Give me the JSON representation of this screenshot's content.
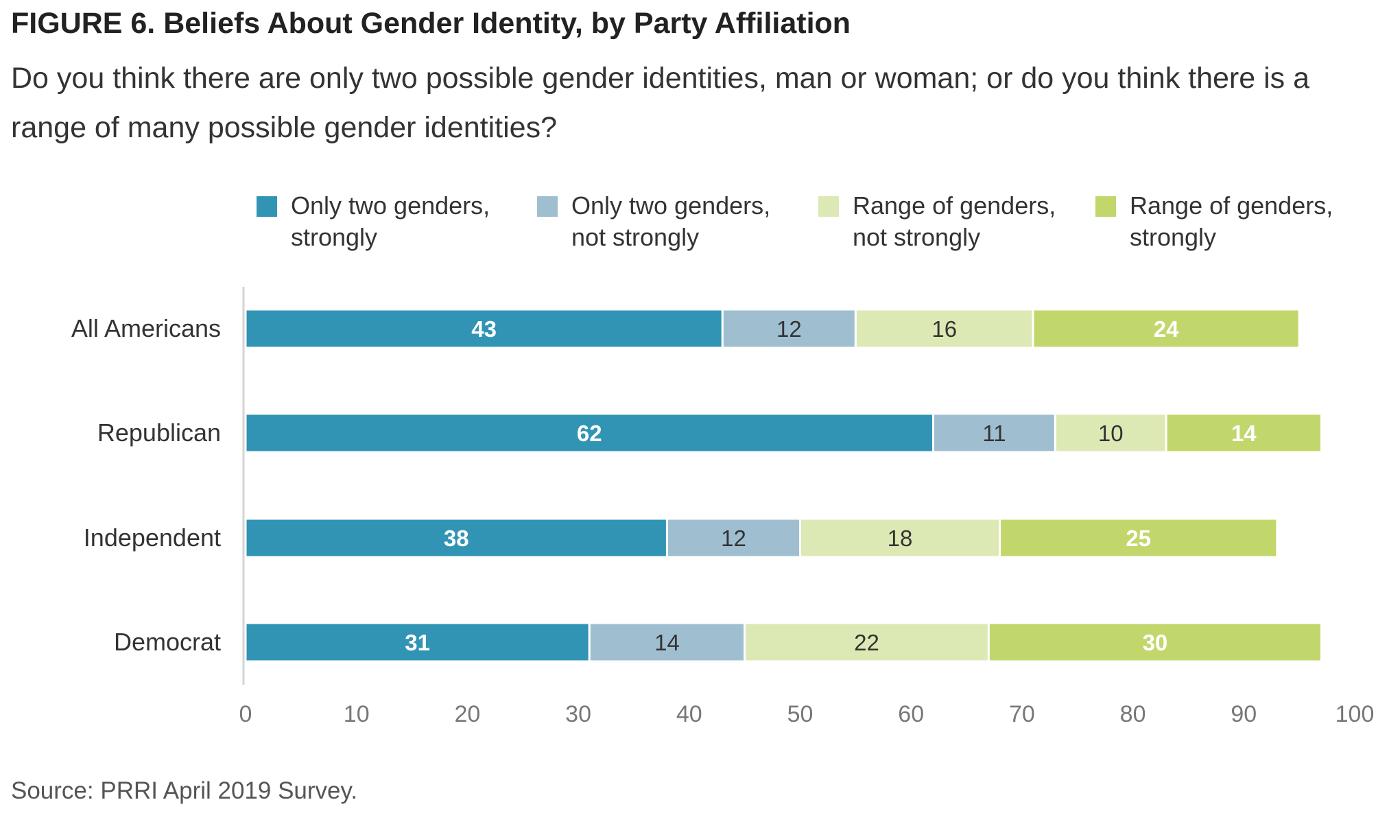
{
  "figure": {
    "title": "FIGURE 6. Beliefs About Gender Identity, by Party Affiliation",
    "subtitle": "Do you think there are only two possible gender identities, man or woman; or do you think there is a range of many possible gender identities?",
    "source": "Source: PRRI April 2019 Survey."
  },
  "chart_data": {
    "type": "bar",
    "orientation": "horizontal",
    "stacked": true,
    "categories": [
      "All Americans",
      "Republican",
      "Independent",
      "Democrat"
    ],
    "series": [
      {
        "name": "Only two genders, strongly",
        "legend_lines": [
          "Only two genders,",
          "strongly"
        ],
        "color": "#3294b4",
        "label_color": "#ffffff",
        "label_bold": true,
        "values": [
          43,
          62,
          38,
          31
        ]
      },
      {
        "name": "Only two genders, not strongly",
        "legend_lines": [
          "Only two genders,",
          "not strongly"
        ],
        "color": "#9fbfd1",
        "label_color": "#333333",
        "label_bold": false,
        "values": [
          12,
          11,
          12,
          14
        ]
      },
      {
        "name": "Range of genders, not strongly",
        "legend_lines": [
          "Range of genders,",
          "not strongly"
        ],
        "color": "#dde9b5",
        "label_color": "#333333",
        "label_bold": false,
        "values": [
          16,
          10,
          18,
          22
        ]
      },
      {
        "name": "Range of genders, strongly",
        "legend_lines": [
          "Range of genders,",
          "strongly"
        ],
        "color": "#c2d76b",
        "label_color": "#ffffff",
        "label_bold": true,
        "values": [
          24,
          14,
          25,
          30
        ]
      }
    ],
    "xlim": [
      0,
      100
    ],
    "xticks": [
      0,
      10,
      20,
      30,
      40,
      50,
      60,
      70,
      80,
      90,
      100
    ],
    "grid": false,
    "legend_position": "top"
  }
}
